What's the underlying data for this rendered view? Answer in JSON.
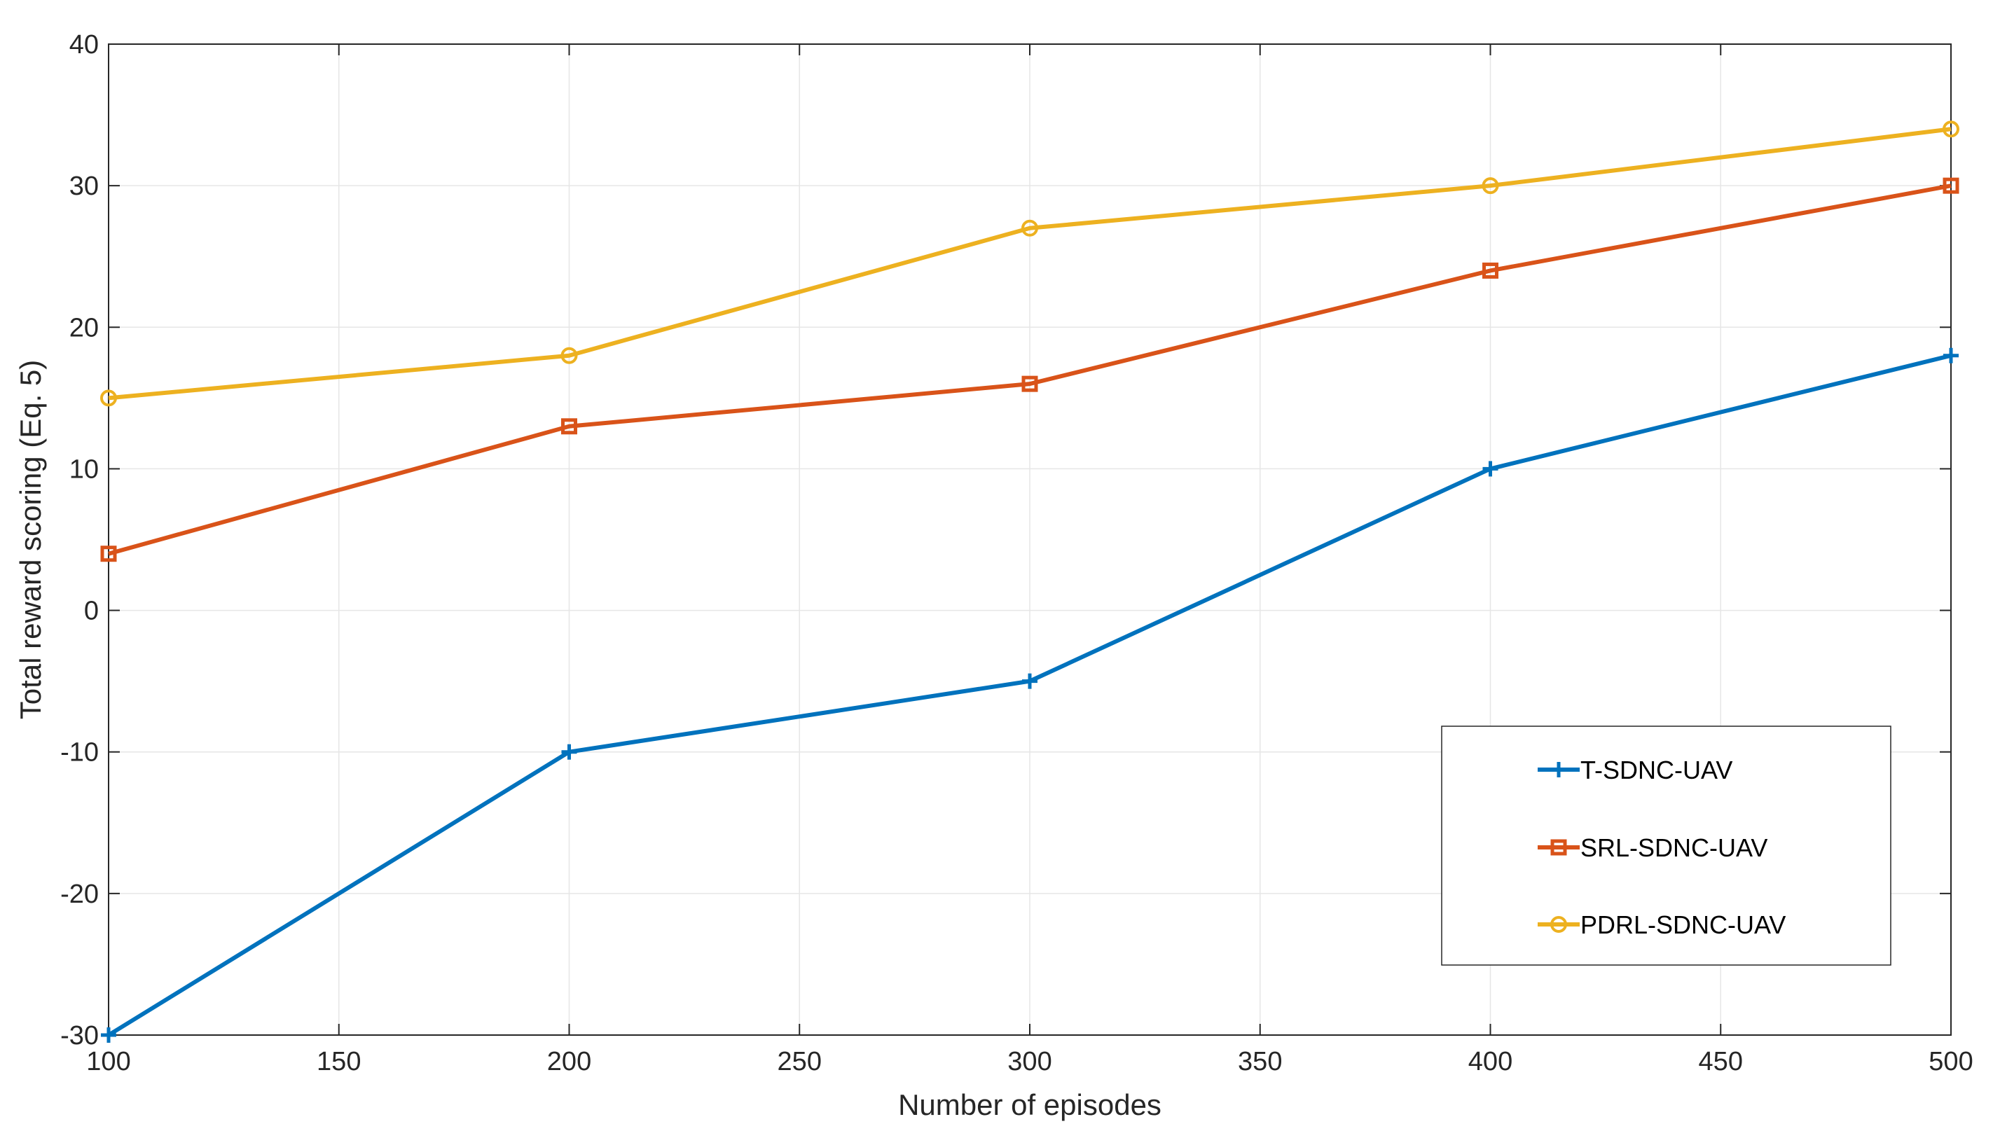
{
  "chart_data": {
    "type": "line",
    "x": [
      100,
      200,
      300,
      400,
      500
    ],
    "xlabel": "Number of episodes",
    "ylabel": "Total reward scoring (Eq. 5)",
    "xlim": [
      100,
      500
    ],
    "ylim": [
      -30,
      40
    ],
    "xticks": [
      "100",
      "150",
      "200",
      "250",
      "300",
      "350",
      "400",
      "450",
      "500"
    ],
    "yticks": [
      "-30",
      "-20",
      "-10",
      "0",
      "10",
      "20",
      "30",
      "40"
    ],
    "grid": true,
    "legend_position": "lower-right",
    "series": [
      {
        "name": "T-SDNC-UAV",
        "values": [
          -30,
          -10,
          -5,
          10,
          18
        ],
        "color": "#0072BD",
        "marker": "plus"
      },
      {
        "name": "SRL-SDNC-UAV",
        "values": [
          4,
          13,
          16,
          24,
          30
        ],
        "color": "#D95319",
        "marker": "square"
      },
      {
        "name": "PDRL-SDNC-UAV",
        "values": [
          15,
          18,
          27,
          30,
          34
        ],
        "color": "#EDB120",
        "marker": "circle"
      }
    ]
  }
}
